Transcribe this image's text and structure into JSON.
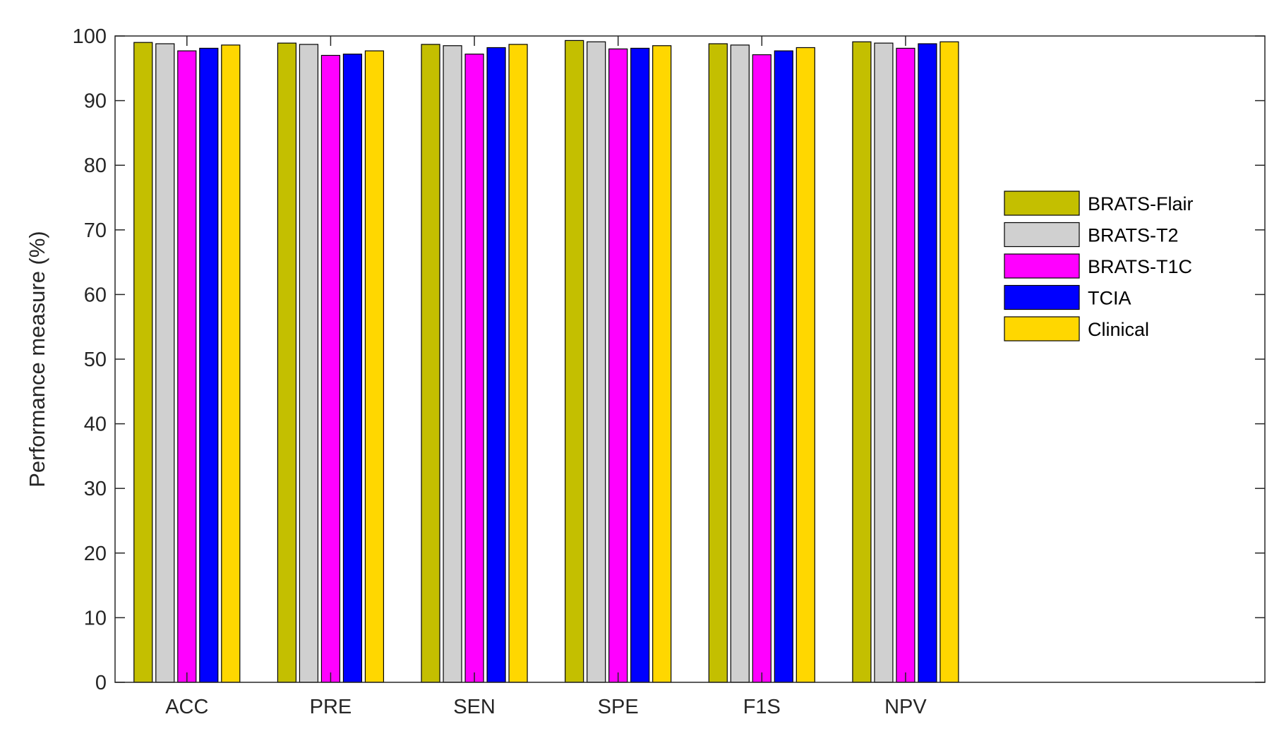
{
  "chart_data": {
    "type": "bar",
    "title": "",
    "xlabel": "",
    "ylabel": "Performance measure (%)",
    "ylim": [
      0,
      100
    ],
    "yticks": [
      "0",
      "10",
      "20",
      "30",
      "40",
      "50",
      "60",
      "70",
      "80",
      "90",
      "100"
    ],
    "xlim_categories": 8,
    "categories": [
      "ACC",
      "PRE",
      "SEN",
      "SPE",
      "F1S",
      "NPV"
    ],
    "grid": false,
    "legend_position": "right",
    "series": [
      {
        "name": "BRATS-Flair",
        "color": "#c4bf00",
        "values": [
          99.0,
          98.9,
          98.7,
          99.3,
          98.8,
          99.1
        ]
      },
      {
        "name": "BRATS-T2",
        "color": "#d0d0d0",
        "values": [
          98.8,
          98.7,
          98.5,
          99.1,
          98.6,
          98.9
        ]
      },
      {
        "name": "BRATS-T1C",
        "color": "#ff00ff",
        "values": [
          97.7,
          97.0,
          97.2,
          98.0,
          97.1,
          98.1
        ]
      },
      {
        "name": "TCIA",
        "color": "#0000ff",
        "values": [
          98.1,
          97.2,
          98.2,
          98.1,
          97.7,
          98.8
        ]
      },
      {
        "name": "Clinical",
        "color": "#ffd700",
        "values": [
          98.6,
          97.7,
          98.7,
          98.5,
          98.2,
          99.1
        ]
      }
    ]
  }
}
